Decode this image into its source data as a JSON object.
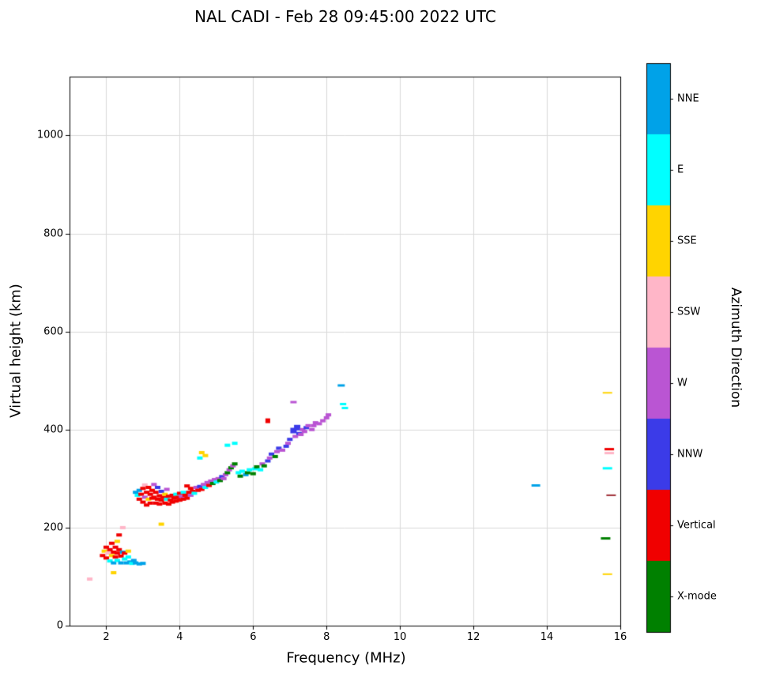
{
  "title": "NAL CADI - Feb 28 09:45:00 2022 UTC",
  "chart_data": {
    "type": "scatter",
    "title": "NAL CADI - Feb 28 09:45:00 2022 UTC",
    "xlabel": "Frequency (MHz)",
    "ylabel": "Virtual height (km)",
    "xlim": [
      1,
      16
    ],
    "ylim": [
      0,
      1120
    ],
    "x_ticks": [
      2,
      4,
      6,
      8,
      10,
      12,
      14,
      16
    ],
    "y_ticks": [
      0,
      200,
      400,
      600,
      800,
      1000
    ],
    "grid": true,
    "marker": "horizontal-dash",
    "colorbar": {
      "label": "Azimuth Direction",
      "order_top_to_bottom": [
        "NNE",
        "E",
        "SSE",
        "SSW",
        "W",
        "NNW",
        "Vertical",
        "X-mode"
      ],
      "categories": [
        {
          "name": "NNE",
          "color": "#00A2E8"
        },
        {
          "name": "E",
          "color": "#00FFFF"
        },
        {
          "name": "SSE",
          "color": "#FFD400"
        },
        {
          "name": "SSW",
          "color": "#FFB6C8"
        },
        {
          "name": "W",
          "color": "#BA55D3"
        },
        {
          "name": "NNW",
          "color": "#3B3BE8"
        },
        {
          "name": "Vertical",
          "color": "#F00000"
        },
        {
          "name": "X-mode",
          "color": "#008000"
        }
      ]
    },
    "points": [
      [
        1.55,
        95,
        "SSW"
      ],
      [
        1.9,
        143,
        "Vertical"
      ],
      [
        1.95,
        152,
        "SSE"
      ],
      [
        2.0,
        138,
        "Vertical"
      ],
      [
        2.0,
        160,
        "Vertical"
      ],
      [
        2.05,
        148,
        "SSW"
      ],
      [
        2.1,
        132,
        "E"
      ],
      [
        2.1,
        155,
        "Vertical"
      ],
      [
        2.15,
        168,
        "Vertical"
      ],
      [
        2.15,
        143,
        "SSE"
      ],
      [
        2.2,
        150,
        "Vertical"
      ],
      [
        2.2,
        128,
        "NNE"
      ],
      [
        2.2,
        108,
        "SSE"
      ],
      [
        2.25,
        160,
        "Vertical"
      ],
      [
        2.25,
        140,
        "Vertical"
      ],
      [
        2.3,
        172,
        "SSE"
      ],
      [
        2.3,
        148,
        "Vertical"
      ],
      [
        2.3,
        133,
        "E"
      ],
      [
        2.35,
        155,
        "Vertical"
      ],
      [
        2.35,
        185,
        "Vertical"
      ],
      [
        2.4,
        142,
        "Vertical"
      ],
      [
        2.4,
        128,
        "NNE"
      ],
      [
        2.45,
        150,
        "NNE"
      ],
      [
        2.45,
        200,
        "SSW"
      ],
      [
        2.5,
        136,
        "E"
      ],
      [
        2.5,
        148,
        "Vertical"
      ],
      [
        2.55,
        128,
        "NNE"
      ],
      [
        2.6,
        140,
        "E"
      ],
      [
        2.6,
        152,
        "SSE"
      ],
      [
        2.65,
        130,
        "NNE"
      ],
      [
        2.7,
        127,
        "E"
      ],
      [
        2.75,
        133,
        "NNE"
      ],
      [
        2.8,
        128,
        "NNE"
      ],
      [
        2.9,
        126,
        "NNE"
      ],
      [
        3.0,
        127,
        "NNE"
      ],
      [
        3.5,
        207,
        "SSE"
      ],
      [
        2.8,
        272,
        "NNE"
      ],
      [
        2.85,
        266,
        "E"
      ],
      [
        2.9,
        276,
        "NNE"
      ],
      [
        2.9,
        258,
        "Vertical"
      ],
      [
        2.95,
        268,
        "Vertical"
      ],
      [
        3.0,
        280,
        "Vertical"
      ],
      [
        3.0,
        252,
        "Vertical"
      ],
      [
        3.05,
        262,
        "W"
      ],
      [
        3.05,
        287,
        "SSW"
      ],
      [
        3.1,
        272,
        "Vertical"
      ],
      [
        3.1,
        246,
        "Vertical"
      ],
      [
        3.15,
        282,
        "Vertical"
      ],
      [
        3.15,
        258,
        "SSE"
      ],
      [
        3.2,
        268,
        "Vertical"
      ],
      [
        3.2,
        250,
        "Vertical"
      ],
      [
        3.25,
        276,
        "Vertical"
      ],
      [
        3.25,
        260,
        "Vertical"
      ],
      [
        3.3,
        288,
        "W"
      ],
      [
        3.3,
        262,
        "Vertical"
      ],
      [
        3.35,
        250,
        "Vertical"
      ],
      [
        3.35,
        272,
        "Vertical"
      ],
      [
        3.4,
        258,
        "Vertical"
      ],
      [
        3.4,
        282,
        "NNW"
      ],
      [
        3.45,
        265,
        "Vertical"
      ],
      [
        3.45,
        248,
        "Vertical"
      ],
      [
        3.5,
        274,
        "NNW"
      ],
      [
        3.5,
        256,
        "Vertical"
      ],
      [
        3.55,
        262,
        "Vertical"
      ],
      [
        3.6,
        250,
        "Vertical"
      ],
      [
        3.6,
        268,
        "SSE"
      ],
      [
        3.65,
        258,
        "E"
      ],
      [
        3.65,
        278,
        "W"
      ],
      [
        3.7,
        264,
        "Vertical"
      ],
      [
        3.7,
        248,
        "Vertical"
      ],
      [
        3.75,
        256,
        "Vertical"
      ],
      [
        3.8,
        266,
        "Vertical"
      ],
      [
        3.8,
        252,
        "Vertical"
      ],
      [
        3.85,
        260,
        "Vertical"
      ],
      [
        3.9,
        268,
        "E"
      ],
      [
        3.9,
        254,
        "Vertical"
      ],
      [
        3.95,
        262,
        "Vertical"
      ],
      [
        4.0,
        256,
        "Vertical"
      ],
      [
        4.0,
        270,
        "Vertical"
      ],
      [
        4.05,
        264,
        "W"
      ],
      [
        4.1,
        258,
        "Vertical"
      ],
      [
        4.1,
        272,
        "E"
      ],
      [
        4.15,
        266,
        "Vertical"
      ],
      [
        4.2,
        285,
        "Vertical"
      ],
      [
        4.2,
        260,
        "Vertical"
      ],
      [
        4.25,
        272,
        "Vertical"
      ],
      [
        4.3,
        266,
        "W"
      ],
      [
        4.3,
        280,
        "Vertical"
      ],
      [
        4.35,
        274,
        "Vertical"
      ],
      [
        4.4,
        270,
        "E"
      ],
      [
        4.45,
        282,
        "W"
      ],
      [
        4.5,
        276,
        "Vertical"
      ],
      [
        4.55,
        284,
        "NNW"
      ],
      [
        4.6,
        278,
        "Vertical"
      ],
      [
        4.65,
        288,
        "W"
      ],
      [
        4.7,
        282,
        "E"
      ],
      [
        4.75,
        292,
        "W"
      ],
      [
        4.8,
        286,
        "Vertical"
      ],
      [
        4.85,
        295,
        "W"
      ],
      [
        4.9,
        290,
        "X-mode"
      ],
      [
        4.95,
        298,
        "W"
      ],
      [
        5.0,
        293,
        "E"
      ],
      [
        5.05,
        300,
        "W"
      ],
      [
        5.1,
        296,
        "X-mode"
      ],
      [
        5.15,
        304,
        "NNW"
      ],
      [
        5.2,
        300,
        "W"
      ],
      [
        5.25,
        308,
        "W"
      ],
      [
        5.3,
        312,
        "X-mode"
      ],
      [
        5.35,
        318,
        "W"
      ],
      [
        5.4,
        322,
        "X-mode"
      ],
      [
        5.45,
        326,
        "W"
      ],
      [
        5.5,
        330,
        "X-mode"
      ],
      [
        4.55,
        342,
        "E"
      ],
      [
        4.6,
        353,
        "SSE"
      ],
      [
        4.7,
        347,
        "SSE"
      ],
      [
        5.3,
        368,
        "E"
      ],
      [
        5.5,
        372,
        "E"
      ],
      [
        5.6,
        312,
        "E"
      ],
      [
        5.65,
        305,
        "X-mode"
      ],
      [
        5.7,
        315,
        "E"
      ],
      [
        5.8,
        308,
        "NNE"
      ],
      [
        5.85,
        312,
        "X-mode"
      ],
      [
        5.9,
        318,
        "E"
      ],
      [
        6.0,
        310,
        "X-mode"
      ],
      [
        6.05,
        320,
        "E"
      ],
      [
        6.1,
        324,
        "X-mode"
      ],
      [
        6.2,
        318,
        "E"
      ],
      [
        6.25,
        330,
        "W"
      ],
      [
        6.3,
        326,
        "X-mode"
      ],
      [
        6.4,
        336,
        "NNW"
      ],
      [
        6.45,
        342,
        "W"
      ],
      [
        6.5,
        350,
        "NNW"
      ],
      [
        6.6,
        345,
        "X-mode"
      ],
      [
        6.65,
        355,
        "W"
      ],
      [
        6.7,
        362,
        "NNW"
      ],
      [
        6.8,
        358,
        "W"
      ],
      [
        6.9,
        366,
        "NNW"
      ],
      [
        6.95,
        372,
        "W"
      ],
      [
        6.4,
        418,
        "Vertical",
        6,
        6
      ],
      [
        7.0,
        380,
        "NNW"
      ],
      [
        7.1,
        456,
        "W",
        8,
        3
      ],
      [
        7.1,
        398,
        "NNW",
        8,
        7
      ],
      [
        7.15,
        386,
        "W"
      ],
      [
        7.2,
        404,
        "NNW",
        8,
        7
      ],
      [
        7.25,
        392,
        "NNW"
      ],
      [
        7.3,
        390,
        "W"
      ],
      [
        7.35,
        400,
        "W"
      ],
      [
        7.4,
        396,
        "W"
      ],
      [
        7.45,
        404,
        "NNW"
      ],
      [
        7.5,
        408,
        "W"
      ],
      [
        7.6,
        400,
        "W"
      ],
      [
        7.65,
        408,
        "W"
      ],
      [
        7.7,
        414,
        "W"
      ],
      [
        7.8,
        412,
        "W"
      ],
      [
        7.9,
        418,
        "W"
      ],
      [
        8.0,
        424,
        "W"
      ],
      [
        8.05,
        430,
        "W"
      ],
      [
        8.4,
        490,
        "NNE",
        9,
        3
      ],
      [
        8.45,
        452,
        "E",
        8,
        3
      ],
      [
        8.5,
        444,
        "E",
        8,
        3
      ],
      [
        13.7,
        286,
        "NNE",
        11,
        3
      ],
      [
        15.65,
        475,
        "SSE",
        12,
        2
      ],
      [
        15.7,
        360,
        "Vertical",
        12,
        3
      ],
      [
        15.7,
        352,
        "SSW",
        12,
        3
      ],
      [
        15.65,
        321,
        "E",
        12,
        3
      ],
      [
        15.75,
        266,
        "Vertical",
        12,
        2,
        "#A03038"
      ],
      [
        15.6,
        178,
        "X-mode",
        12,
        3
      ],
      [
        15.65,
        105,
        "SSE",
        12,
        2
      ]
    ]
  }
}
